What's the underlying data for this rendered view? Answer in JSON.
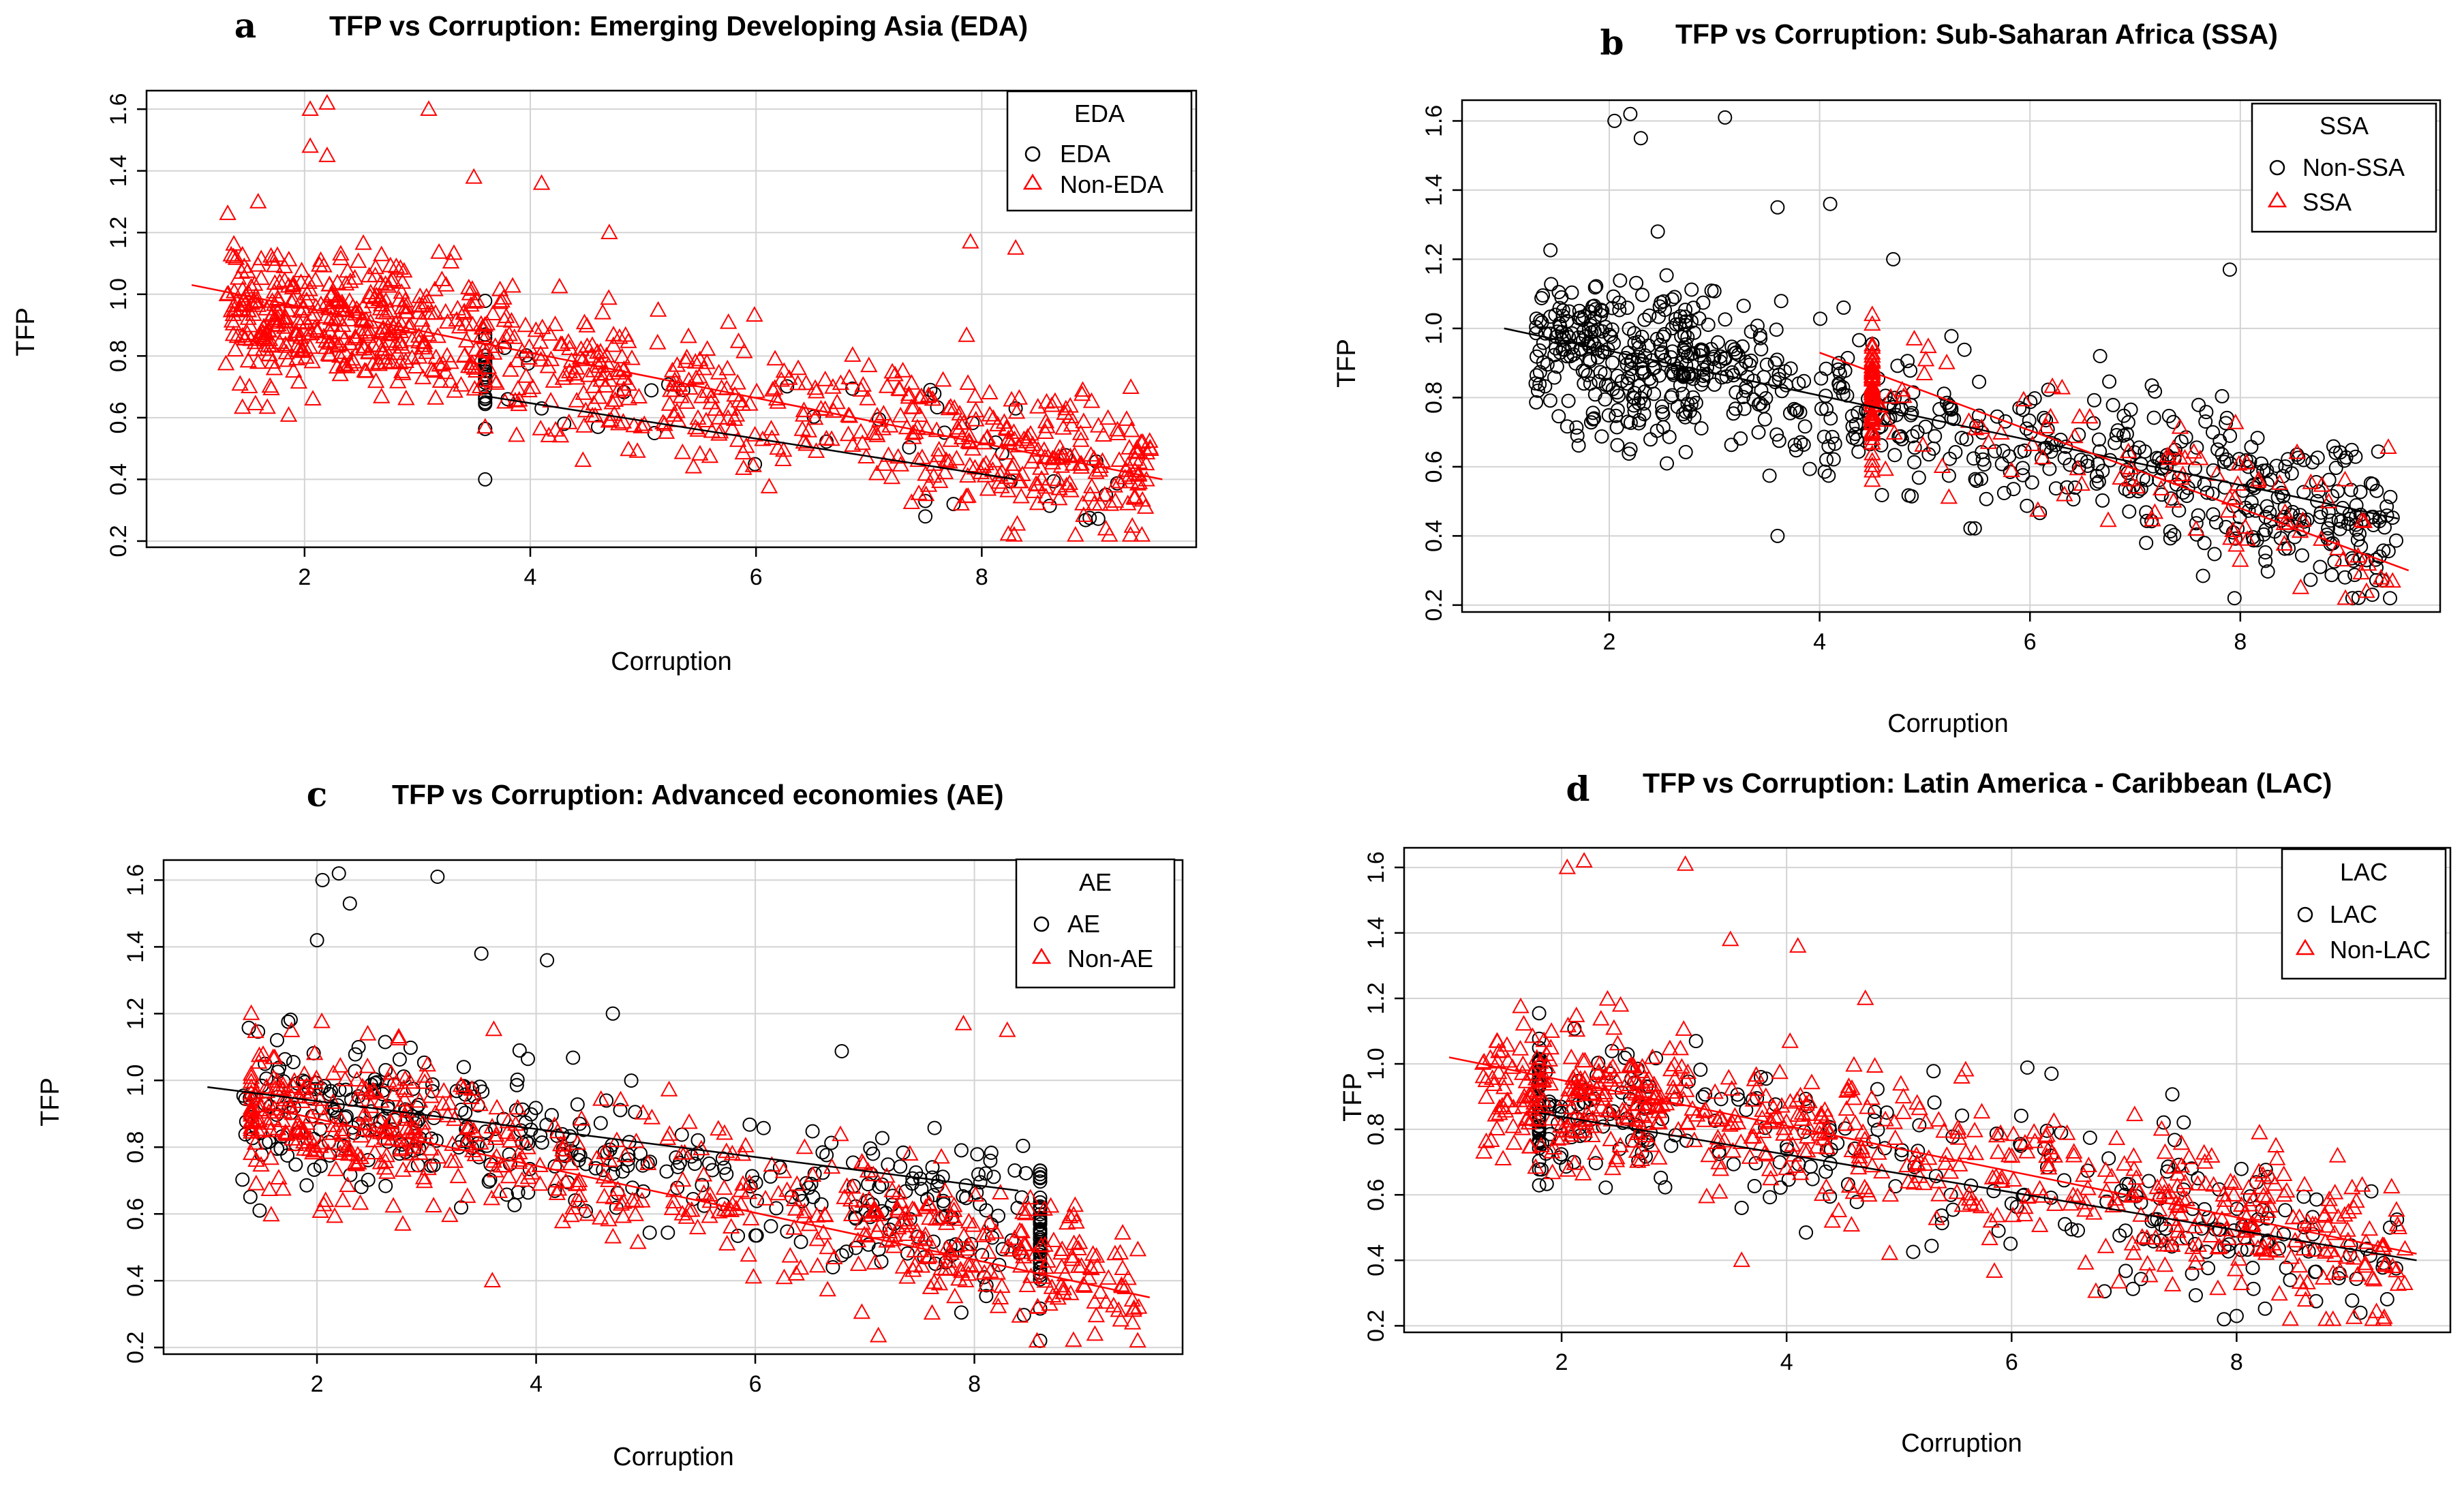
{
  "figure": {
    "colors": {
      "black": "#000000",
      "red": "#ff0000",
      "grid": "#d3d3d3"
    }
  },
  "chart_data": [
    {
      "id": "a",
      "type": "scatter",
      "letter": "a",
      "title": "TFP vs Corruption: Emerging Developing Asia (EDA)",
      "xlabel": "Corruption",
      "ylabel": "TFP",
      "xlim": [
        0.6,
        9.9
      ],
      "ylim": [
        0.18,
        1.66
      ],
      "xticks": [
        2,
        4,
        6,
        8
      ],
      "yticks": [
        0.2,
        0.4,
        0.6,
        0.8,
        1.0,
        1.2,
        1.4,
        1.6
      ],
      "grid": true,
      "legend": {
        "title": "EDA",
        "position": "top-right",
        "entries": [
          {
            "label": "EDA",
            "marker": "circle",
            "color": "#000000"
          },
          {
            "label": "Non-EDA",
            "marker": "triangle",
            "color": "#ff0000"
          }
        ]
      },
      "series": [
        {
          "name": "EDA",
          "marker": "circle",
          "color": "#000000",
          "fit": [
            [
              3.6,
              0.67
            ],
            [
              8.3,
              0.4
            ]
          ],
          "x_range": [
            3.6,
            9.2
          ],
          "n": 55,
          "points": [
            [
              3.6,
              0.4
            ],
            [
              3.8,
              0.66
            ],
            [
              4.1,
              0.63
            ],
            [
              4.3,
              0.58
            ],
            [
              4.6,
              0.57
            ],
            [
              5.1,
              0.55
            ],
            [
              7.5,
              0.28
            ],
            [
              7.5,
              0.33
            ],
            [
              8.3,
              0.63
            ],
            [
              9.1,
              0.35
            ]
          ]
        },
        {
          "name": "Non-EDA",
          "marker": "triangle",
          "color": "#ff0000",
          "fit": [
            [
              1.0,
              1.03
            ],
            [
              9.6,
              0.4
            ]
          ],
          "x_range": [
            0.95,
            9.6
          ],
          "n": 900,
          "points": [
            [
              2.05,
              1.6
            ],
            [
              2.2,
              1.62
            ],
            [
              2.05,
              1.48
            ],
            [
              2.2,
              1.45
            ],
            [
              3.1,
              1.6
            ],
            [
              3.5,
              1.38
            ],
            [
              4.1,
              1.36
            ],
            [
              4.7,
              1.2
            ],
            [
              8.3,
              1.15
            ],
            [
              7.9,
              1.17
            ],
            [
              3.6,
              0.57
            ],
            [
              9.1,
              0.24
            ]
          ]
        }
      ]
    },
    {
      "id": "b",
      "type": "scatter",
      "letter": "b",
      "title": "TFP vs Corruption: Sub-Saharan Africa (SSA)",
      "xlabel": "Corruption",
      "ylabel": "TFP",
      "xlim": [
        0.6,
        9.9
      ],
      "ylim": [
        0.18,
        1.66
      ],
      "xticks": [
        2,
        4,
        6,
        8
      ],
      "yticks": [
        0.2,
        0.4,
        0.6,
        0.8,
        1.0,
        1.2,
        1.4,
        1.6
      ],
      "grid": true,
      "legend": {
        "title": "SSA",
        "position": "top-right",
        "entries": [
          {
            "label": "Non-SSA",
            "marker": "circle",
            "color": "#000000"
          },
          {
            "label": "SSA",
            "marker": "triangle",
            "color": "#ff0000"
          }
        ]
      },
      "series": [
        {
          "name": "Non-SSA",
          "marker": "circle",
          "color": "#000000",
          "fit": [
            [
              1.0,
              1.0
            ],
            [
              9.5,
              0.45
            ]
          ],
          "x_range": [
            0.95,
            9.6
          ],
          "n": 780,
          "points": [
            [
              2.05,
              1.6
            ],
            [
              2.2,
              1.62
            ],
            [
              2.3,
              1.55
            ],
            [
              3.1,
              1.61
            ],
            [
              3.6,
              1.35
            ],
            [
              4.1,
              1.36
            ],
            [
              4.7,
              1.2
            ],
            [
              3.6,
              0.4
            ],
            [
              7.9,
              1.17
            ],
            [
              9.2,
              0.33
            ]
          ]
        },
        {
          "name": "SSA",
          "marker": "triangle",
          "color": "#ff0000",
          "fit": [
            [
              4.0,
              0.93
            ],
            [
              9.6,
              0.3
            ]
          ],
          "x_range": [
            4.5,
            9.6
          ],
          "n": 180,
          "points": [
            [
              4.9,
              0.97
            ],
            [
              9.0,
              0.22
            ],
            [
              9.2,
              0.24
            ],
            [
              8.0,
              0.33
            ]
          ]
        }
      ]
    },
    {
      "id": "c",
      "type": "scatter",
      "letter": "c",
      "title": "TFP vs Corruption: Advanced economies (AE)",
      "xlabel": "Corruption",
      "ylabel": "TFP",
      "xlim": [
        0.6,
        9.9
      ],
      "ylim": [
        0.18,
        1.66
      ],
      "xticks": [
        2,
        4,
        6,
        8
      ],
      "yticks": [
        0.2,
        0.4,
        0.6,
        0.8,
        1.0,
        1.2,
        1.4,
        1.6
      ],
      "grid": true,
      "legend": {
        "title": "AE",
        "position": "top-right",
        "entries": [
          {
            "label": "AE",
            "marker": "circle",
            "color": "#000000"
          },
          {
            "label": "Non-AE",
            "marker": "triangle",
            "color": "#ff0000"
          }
        ]
      },
      "series": [
        {
          "name": "AE",
          "marker": "circle",
          "color": "#000000",
          "fit": [
            [
              1.0,
              0.98
            ],
            [
              8.4,
              0.67
            ]
          ],
          "x_range": [
            0.95,
            8.6
          ],
          "n": 430,
          "points": [
            [
              2.05,
              1.6
            ],
            [
              2.2,
              1.62
            ],
            [
              2.3,
              1.53
            ],
            [
              3.1,
              1.61
            ],
            [
              3.5,
              1.38
            ],
            [
              4.1,
              1.36
            ],
            [
              4.7,
              1.2
            ],
            [
              2.0,
              1.42
            ]
          ]
        },
        {
          "name": "Non-AE",
          "marker": "triangle",
          "color": "#ff0000",
          "fit": [
            [
              1.5,
              0.92
            ],
            [
              9.6,
              0.35
            ]
          ],
          "x_range": [
            1.4,
            9.6
          ],
          "n": 600,
          "points": [
            [
              3.6,
              0.4
            ],
            [
              8.3,
              1.15
            ],
            [
              7.9,
              1.17
            ],
            [
              9.1,
              0.24
            ]
          ]
        }
      ]
    },
    {
      "id": "d",
      "type": "scatter",
      "letter": "d",
      "title": "TFP vs Corruption: Latin America - Caribbean (LAC)",
      "xlabel": "Corruption",
      "ylabel": "TFP",
      "xlim": [
        0.6,
        9.9
      ],
      "ylim": [
        0.18,
        1.66
      ],
      "xticks": [
        2,
        4,
        6,
        8
      ],
      "yticks": [
        0.2,
        0.4,
        0.6,
        0.8,
        1.0,
        1.2,
        1.4,
        1.6
      ],
      "grid": true,
      "legend": {
        "title": "LAC",
        "position": "top-right",
        "entries": [
          {
            "label": "LAC",
            "marker": "circle",
            "color": "#000000"
          },
          {
            "label": "Non-LAC",
            "marker": "triangle",
            "color": "#ff0000"
          }
        ]
      },
      "series": [
        {
          "name": "LAC",
          "marker": "circle",
          "color": "#000000",
          "fit": [
            [
              1.8,
              0.85
            ],
            [
              9.6,
              0.4
            ]
          ],
          "x_range": [
            1.8,
            9.6
          ],
          "n": 320,
          "points": [
            [
              3.6,
              0.56
            ],
            [
              8.0,
              0.23
            ],
            [
              9.1,
              0.24
            ],
            [
              2.0,
              0.85
            ]
          ]
        },
        {
          "name": "Non-LAC",
          "marker": "triangle",
          "color": "#ff0000",
          "fit": [
            [
              1.0,
              1.02
            ],
            [
              9.6,
              0.42
            ]
          ],
          "x_range": [
            0.95,
            9.6
          ],
          "n": 650,
          "points": [
            [
              2.05,
              1.6
            ],
            [
              2.2,
              1.62
            ],
            [
              3.1,
              1.61
            ],
            [
              3.5,
              1.38
            ],
            [
              4.1,
              1.36
            ],
            [
              4.7,
              1.2
            ],
            [
              3.6,
              0.4
            ]
          ]
        }
      ]
    }
  ]
}
